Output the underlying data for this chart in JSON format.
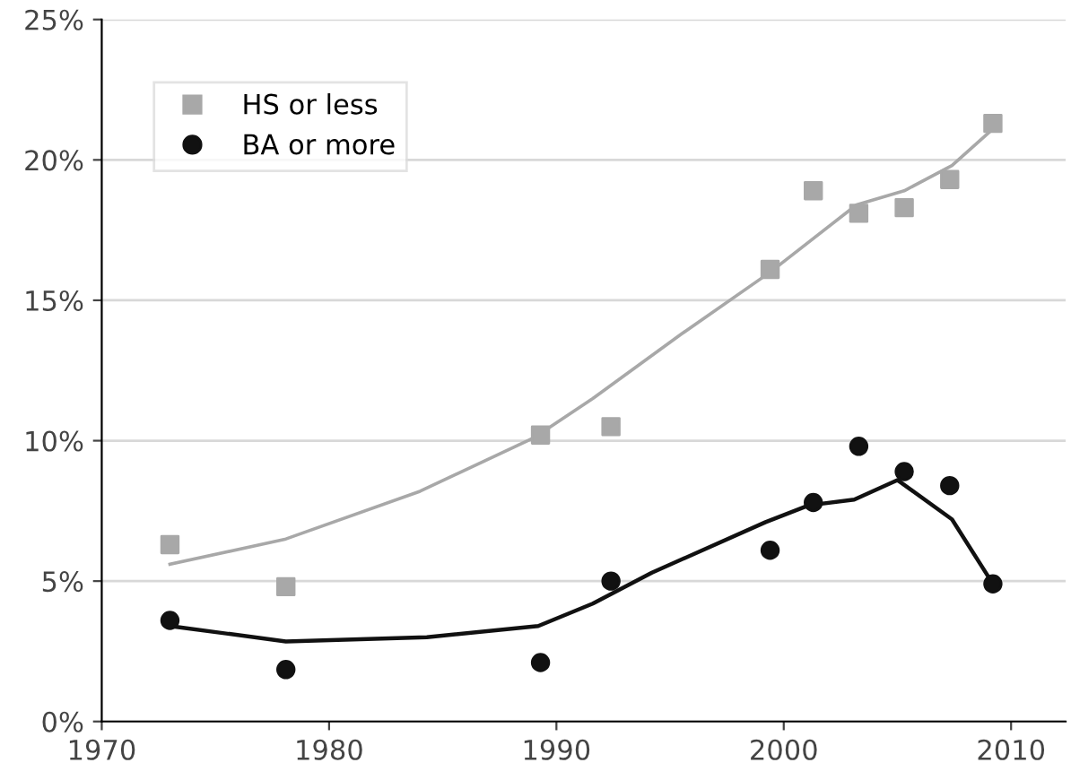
{
  "chart_data": {
    "type": "scatter",
    "series": [
      {
        "name": "HS or less",
        "color": "#a8a8a8",
        "marker": "square",
        "x": [
          1973.0,
          1978.1,
          1989.3,
          1992.4,
          1999.4,
          2001.3,
          2003.3,
          2005.3,
          2007.3,
          2009.2
        ],
        "values": [
          6.3,
          4.8,
          10.2,
          10.5,
          16.1,
          18.9,
          18.1,
          18.3,
          19.3,
          21.3
        ]
      },
      {
        "name": "BA or more",
        "color": "#111111",
        "marker": "circle",
        "x": [
          1973.0,
          1978.1,
          1989.3,
          1992.4,
          1999.4,
          2001.3,
          2003.3,
          2005.3,
          2007.3,
          2009.2
        ],
        "values": [
          3.6,
          1.85,
          2.1,
          5.0,
          6.1,
          7.8,
          9.8,
          8.9,
          8.4,
          4.9
        ]
      },
      {
        "type": "line",
        "color": "#a8a8a8",
        "x": [
          1973.0,
          1978.1,
          1984.0,
          1989.0,
          1991.6,
          1995.5,
          1999.4,
          2003.2,
          2005.3,
          2007.4,
          2009.2
        ],
        "values": [
          5.6,
          6.5,
          8.2,
          10.1,
          11.5,
          13.8,
          16.0,
          18.4,
          18.9,
          19.8,
          21.1
        ]
      },
      {
        "type": "line",
        "color": "#111111",
        "x": [
          1973.0,
          1978.1,
          1984.3,
          1989.2,
          1991.6,
          1994.2,
          1999.2,
          2001.1,
          2003.1,
          2005.0,
          2007.4,
          2009.2
        ],
        "values": [
          3.4,
          2.85,
          3.0,
          3.4,
          4.2,
          5.3,
          7.1,
          7.7,
          7.9,
          8.6,
          7.2,
          4.9
        ]
      }
    ],
    "xlim": [
      1970,
      2012.4
    ],
    "xticks": [
      1970,
      1980,
      1990,
      2000,
      2010
    ],
    "ylim": [
      0,
      25
    ],
    "yticks": [
      {
        "value": 0,
        "label": "0%"
      },
      {
        "value": 5,
        "label": "5%"
      },
      {
        "value": 10,
        "label": "10%"
      },
      {
        "value": 15,
        "label": "15%"
      },
      {
        "value": 20,
        "label": "20%"
      },
      {
        "value": 25,
        "label": "25%"
      }
    ],
    "grid": "y",
    "legend": "top left"
  }
}
